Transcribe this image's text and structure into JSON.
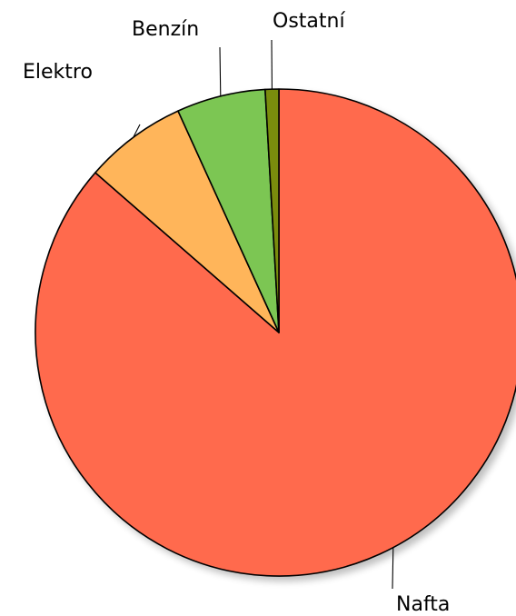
{
  "chart_data": {
    "type": "pie",
    "title": "",
    "legend": "none",
    "start_angle_deg": 90,
    "direction": "clockwise",
    "slices": [
      {
        "label": "Nafta",
        "value": 86.4,
        "color": "#FF6A4D"
      },
      {
        "label": "Elektro",
        "value": 6.8,
        "color": "#FFB55A"
      },
      {
        "label": "Benzín",
        "value": 5.9,
        "color": "#7CC653"
      },
      {
        "label": "Ostatní",
        "value": 0.9,
        "color": "#7A8C0C"
      }
    ]
  }
}
